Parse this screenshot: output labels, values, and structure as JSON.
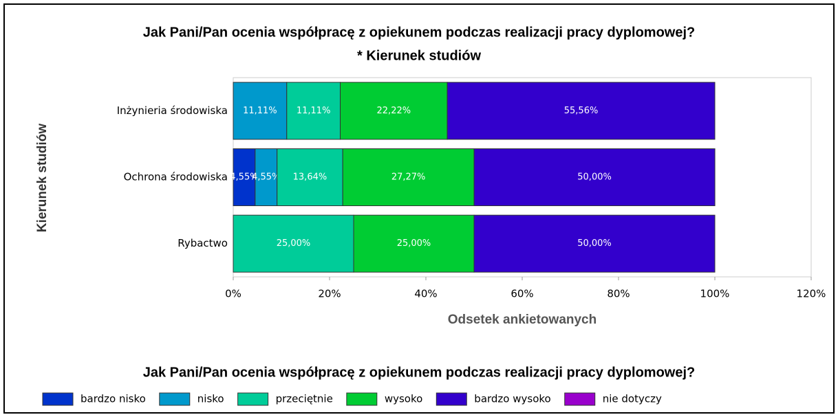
{
  "chart_data": {
    "type": "stacked-barh",
    "title": "Jak Pani/Pan ocenia współpracę z opiekunem podczas realizacji pracy dyplomowej?",
    "subtitle": "* Kierunek studiów",
    "y_label": "Kierunek studiów",
    "x_label": "Odsetek ankietowanych",
    "legend_title": "Jak Pani/Pan ocenia współpracę z opiekunem podczas realizacji pracy dyplomowej?",
    "legend": "bottom",
    "categories": [
      "Inżynieria środowiska",
      "Ochrona środowiska",
      "Rybactwo"
    ],
    "series": [
      {
        "name": "bardzo nisko",
        "color": "#0033cc",
        "values": [
          0,
          4.55,
          0
        ],
        "value_labels": [
          null,
          "4,55%",
          null
        ]
      },
      {
        "name": "nisko",
        "color": "#0099cc",
        "values": [
          11.11,
          4.55,
          0
        ],
        "value_labels": [
          "11,11%",
          "4,55%",
          null
        ]
      },
      {
        "name": "przeciętnie",
        "color": "#00cc99",
        "values": [
          11.11,
          13.64,
          25
        ],
        "value_labels": [
          "11,11%",
          "13,64%",
          "25,00%"
        ]
      },
      {
        "name": "wysoko",
        "color": "#00cc33",
        "values": [
          22.22,
          27.27,
          25
        ],
        "value_labels": [
          "22,22%",
          "27,27%",
          "25,00%"
        ]
      },
      {
        "name": "bardzo wysoko",
        "color": "#3300cc",
        "values": [
          55.56,
          50,
          50
        ],
        "value_labels": [
          "55,56%",
          "50,00%",
          "50,00%"
        ]
      },
      {
        "name": "nie dotyczy",
        "color": "#9900cc",
        "values": [
          0,
          0,
          0
        ],
        "value_labels": [
          null,
          null,
          null
        ]
      }
    ],
    "xlim": [
      0,
      120
    ],
    "xticks": [
      {
        "value": 0,
        "label": "0%"
      },
      {
        "value": 20,
        "label": "20%"
      },
      {
        "value": 40,
        "label": "40%"
      },
      {
        "value": 60,
        "label": "60%"
      },
      {
        "value": 80,
        "label": "80%"
      },
      {
        "value": 100,
        "label": "100%"
      },
      {
        "value": 120,
        "label": "120%"
      }
    ],
    "grid": false
  }
}
